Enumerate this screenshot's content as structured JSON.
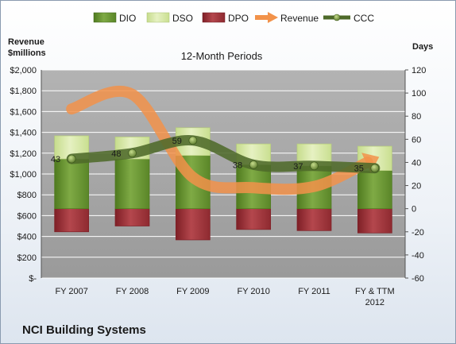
{
  "chart_data": {
    "type": "bar",
    "title": "12-Month Periods",
    "footer": "NCI Building Systems",
    "ylabel_left": "Revenue\n$millions",
    "ylabel_right": "Days",
    "left_axis": {
      "min": 0,
      "max": 2000,
      "step": 200,
      "ticks": [
        "$-",
        "$200",
        "$400",
        "$600",
        "$800",
        "$1,000",
        "$1,200",
        "$1,400",
        "$1,600",
        "$1,800",
        "$2,000"
      ]
    },
    "right_axis": {
      "min": -60,
      "max": 120,
      "step": 20,
      "ticks": [
        "-60",
        "-40",
        "-20",
        "0",
        "20",
        "40",
        "60",
        "80",
        "100",
        "120"
      ]
    },
    "categories": [
      "FY 2007",
      "FY 2008",
      "FY 2009",
      "FY 2010",
      "FY 2011",
      "FY & TTM\n2012"
    ],
    "legend": {
      "position": "top",
      "entries": [
        {
          "name": "DIO",
          "kind": "bar",
          "color": "#6f9a38"
        },
        {
          "name": "DSO",
          "kind": "bar",
          "color": "#cfe39a"
        },
        {
          "name": "DPO",
          "kind": "bar",
          "color": "#a8343a"
        },
        {
          "name": "Revenue",
          "kind": "arrow",
          "color": "#f2924a"
        },
        {
          "name": "CCC",
          "kind": "line-marker",
          "color": "#4e6a2a"
        }
      ]
    },
    "series": [
      {
        "name": "DIO",
        "axis": "right",
        "values": [
          43,
          43,
          46,
          38,
          37,
          33
        ]
      },
      {
        "name": "DSO",
        "axis": "right",
        "values": [
          20,
          19,
          24,
          18,
          19,
          21
        ]
      },
      {
        "name": "DPO",
        "axis": "right",
        "values": [
          -20,
          -15,
          -27,
          -18,
          -19,
          -21
        ]
      },
      {
        "name": "Revenue",
        "axis": "left",
        "values": [
          1625,
          1765,
          968,
          868,
          880,
          1145
        ]
      },
      {
        "name": "CCC",
        "axis": "right",
        "values": [
          43,
          48,
          59,
          38,
          37,
          35
        ],
        "labels": [
          "43",
          "48",
          "59",
          "38",
          "37",
          "35"
        ]
      }
    ],
    "colors": {
      "plot_bg": "#a6a6a6",
      "grid": "#ffffff",
      "ccc_line": "#4e6a2a",
      "ccc_marker": "#8aa84e",
      "dio_dark": "#4f7a1f",
      "dso_light": "#e8f2c4",
      "dpo_dark": "#7e1f26"
    }
  }
}
